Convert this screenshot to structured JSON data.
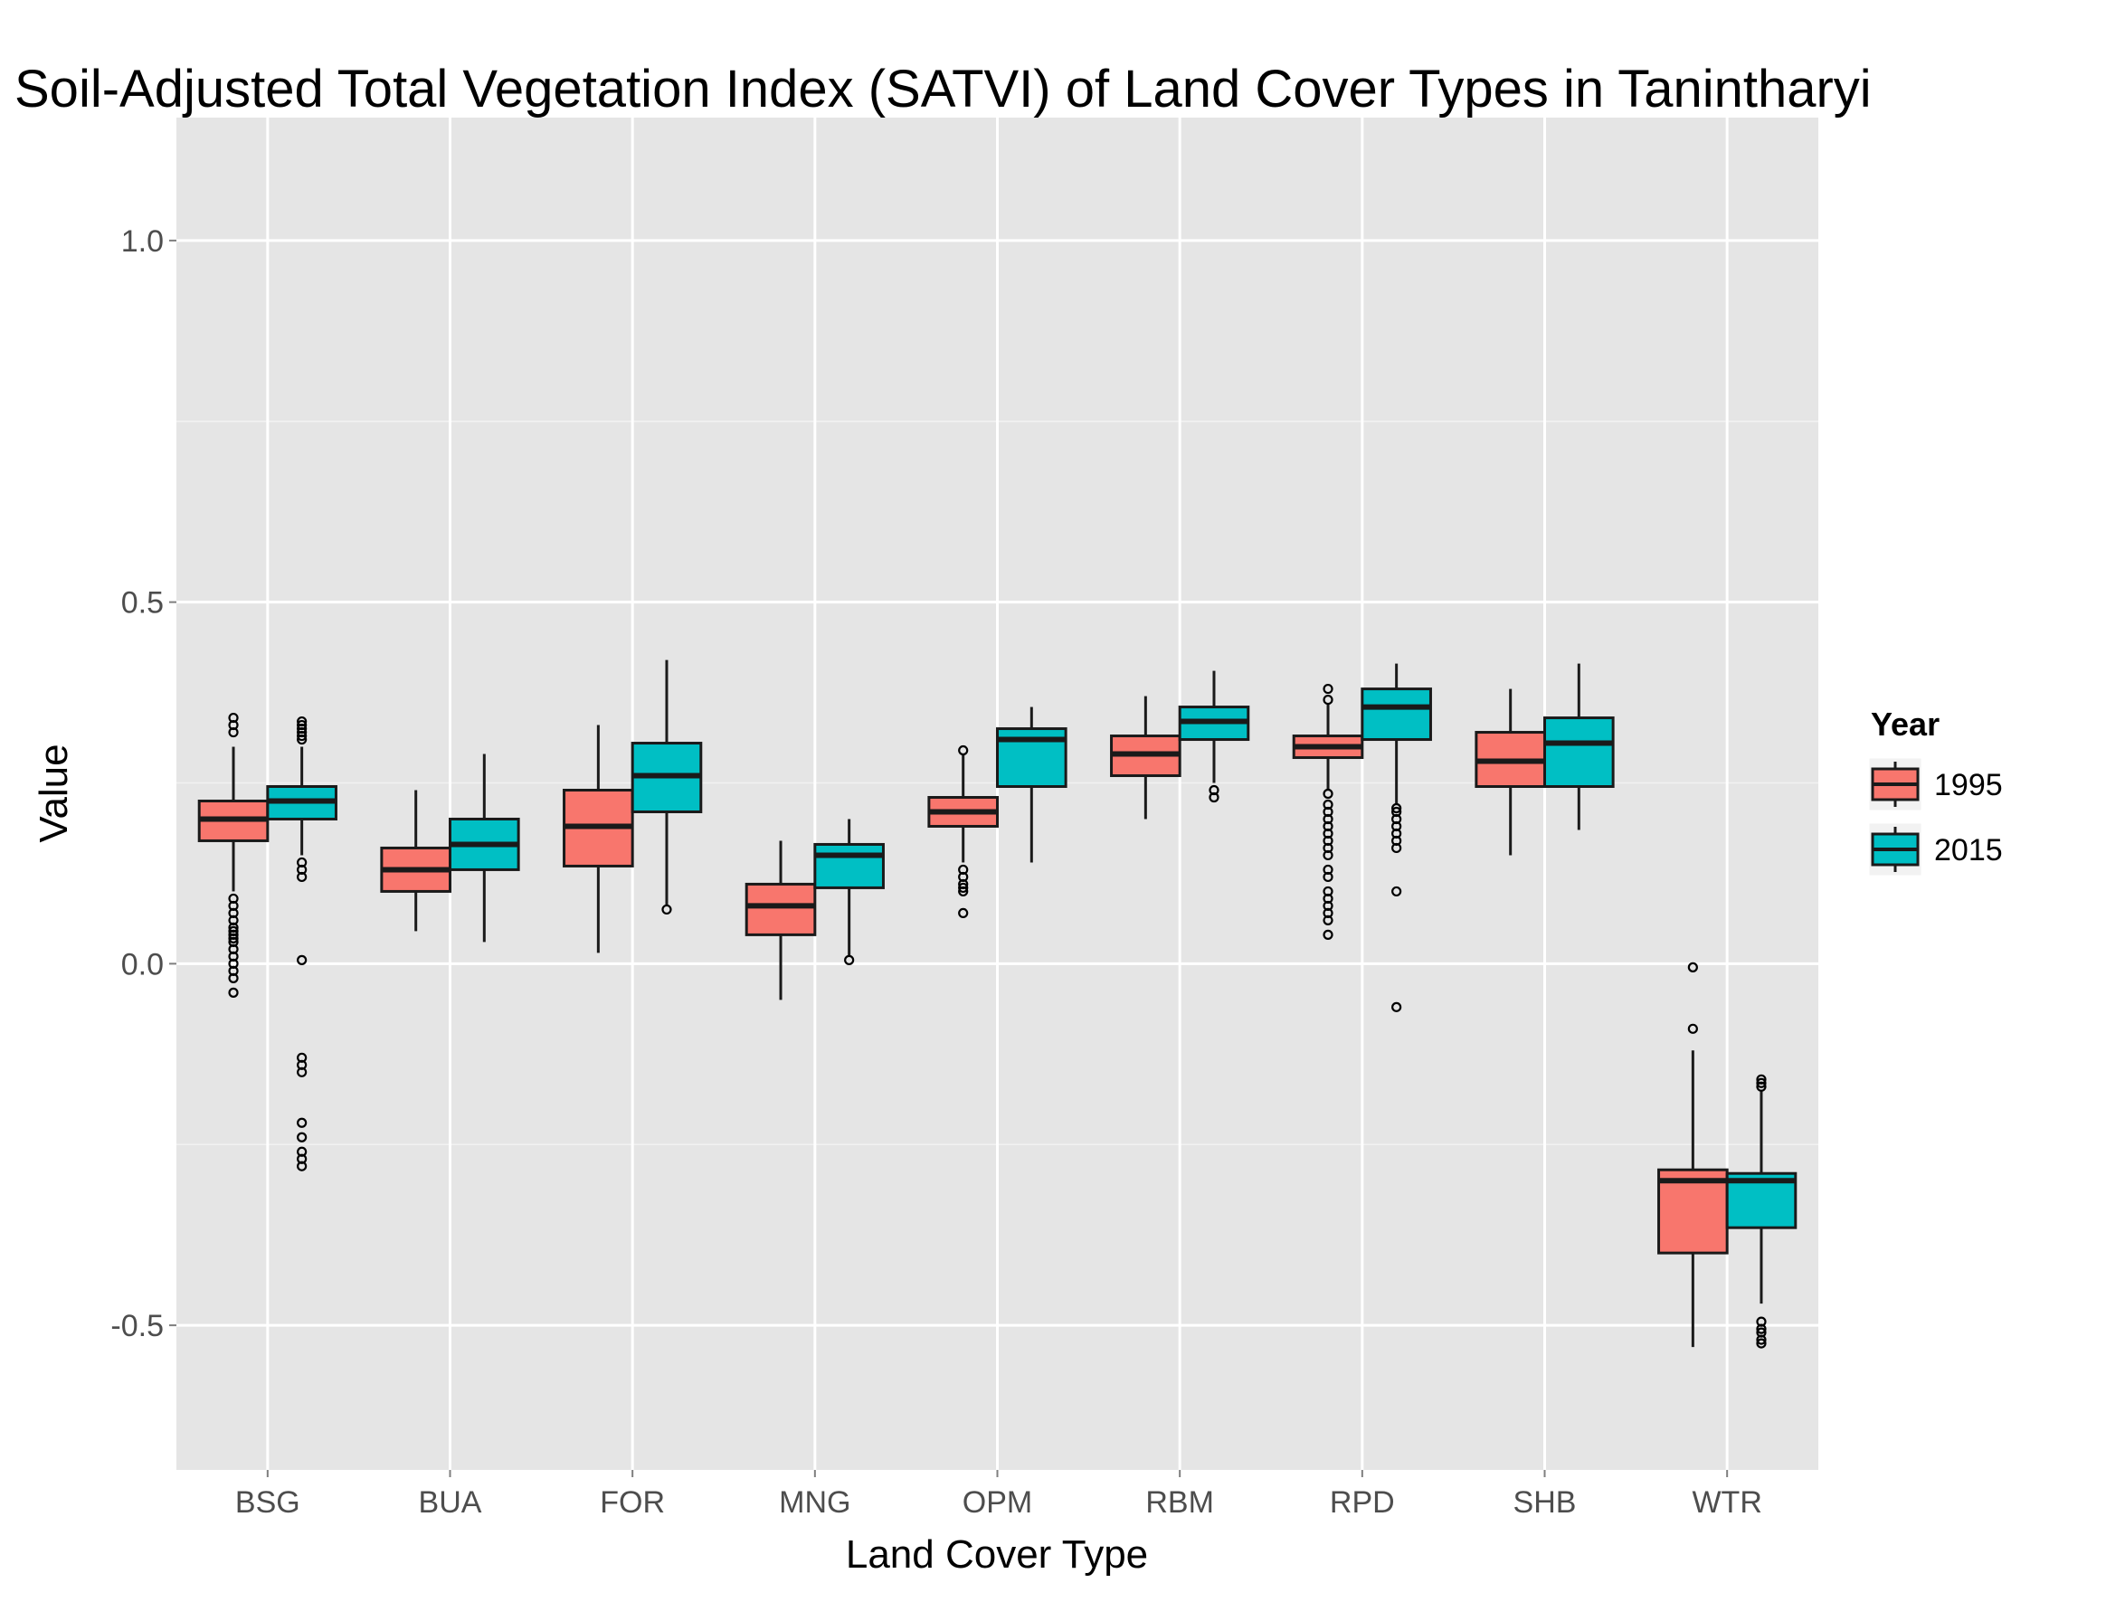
{
  "chart_data": {
    "type": "boxplot",
    "title": "Soil-Adjusted Total Vegetation Index (SATVI) of Land Cover Types in Tanintharyi",
    "xlabel": "Land Cover Type",
    "ylabel": "Value",
    "ylim": [
      -0.7,
      1.17
    ],
    "y_ticks": [
      -0.5,
      0.0,
      0.5,
      1.0
    ],
    "y_tick_labels": [
      "-0.5",
      "0.0",
      "0.5",
      "1.0"
    ],
    "grid": true,
    "legend": {
      "title": "Year",
      "position": "right"
    },
    "categories": [
      "BSG",
      "BUA",
      "FOR",
      "MNG",
      "OPM",
      "RBM",
      "RPD",
      "SHB",
      "WTR"
    ],
    "series": [
      {
        "name": "1995",
        "color": "#F8766D",
        "boxes": [
          {
            "category": "BSG",
            "lower_whisker": 0.1,
            "q1": 0.17,
            "median": 0.2,
            "q3": 0.225,
            "upper_whisker": 0.3,
            "outliers": [
              0.34,
              0.33,
              0.32,
              0.09,
              0.08,
              0.07,
              0.06,
              0.05,
              0.045,
              0.04,
              0.035,
              0.03,
              0.02,
              0.01,
              0.0,
              -0.01,
              -0.02,
              -0.04
            ]
          },
          {
            "category": "BUA",
            "lower_whisker": 0.045,
            "q1": 0.1,
            "median": 0.13,
            "q3": 0.16,
            "upper_whisker": 0.24,
            "outliers": []
          },
          {
            "category": "FOR",
            "lower_whisker": 0.015,
            "q1": 0.135,
            "median": 0.19,
            "q3": 0.24,
            "upper_whisker": 0.33,
            "outliers": []
          },
          {
            "category": "MNG",
            "lower_whisker": -0.05,
            "q1": 0.04,
            "median": 0.08,
            "q3": 0.11,
            "upper_whisker": 0.17,
            "outliers": []
          },
          {
            "category": "OPM",
            "lower_whisker": 0.14,
            "q1": 0.19,
            "median": 0.21,
            "q3": 0.23,
            "upper_whisker": 0.29,
            "outliers": [
              0.295,
              0.13,
              0.12,
              0.11,
              0.105,
              0.1,
              0.07
            ]
          },
          {
            "category": "RBM",
            "lower_whisker": 0.2,
            "q1": 0.26,
            "median": 0.29,
            "q3": 0.315,
            "upper_whisker": 0.37,
            "outliers": []
          },
          {
            "category": "RPD",
            "lower_whisker": 0.24,
            "q1": 0.285,
            "median": 0.3,
            "q3": 0.315,
            "upper_whisker": 0.36,
            "outliers": [
              0.38,
              0.365,
              0.235,
              0.22,
              0.21,
              0.2,
              0.19,
              0.18,
              0.17,
              0.16,
              0.15,
              0.13,
              0.12,
              0.1,
              0.09,
              0.08,
              0.07,
              0.06,
              0.04
            ]
          },
          {
            "category": "SHB",
            "lower_whisker": 0.15,
            "q1": 0.245,
            "median": 0.28,
            "q3": 0.32,
            "upper_whisker": 0.38,
            "outliers": []
          },
          {
            "category": "WTR",
            "lower_whisker": -0.53,
            "q1": -0.4,
            "median": -0.3,
            "q3": -0.285,
            "upper_whisker": -0.12,
            "outliers": [
              -0.005,
              -0.09
            ]
          }
        ]
      },
      {
        "name": "2015",
        "color": "#00BFC4",
        "boxes": [
          {
            "category": "BSG",
            "lower_whisker": 0.15,
            "q1": 0.2,
            "median": 0.225,
            "q3": 0.245,
            "upper_whisker": 0.3,
            "outliers": [
              0.335,
              0.33,
              0.325,
              0.32,
              0.315,
              0.31,
              0.14,
              0.13,
              0.12,
              0.005,
              -0.13,
              -0.14,
              -0.15,
              -0.22,
              -0.24,
              -0.26,
              -0.27,
              -0.28
            ]
          },
          {
            "category": "BUA",
            "lower_whisker": 0.03,
            "q1": 0.13,
            "median": 0.165,
            "q3": 0.2,
            "upper_whisker": 0.29,
            "outliers": []
          },
          {
            "category": "FOR",
            "lower_whisker": 0.08,
            "q1": 0.21,
            "median": 0.26,
            "q3": 0.305,
            "upper_whisker": 0.42,
            "outliers": [
              0.075
            ]
          },
          {
            "category": "MNG",
            "lower_whisker": 0.01,
            "q1": 0.105,
            "median": 0.15,
            "q3": 0.165,
            "upper_whisker": 0.2,
            "outliers": [
              0.005
            ]
          },
          {
            "category": "OPM",
            "lower_whisker": 0.14,
            "q1": 0.245,
            "median": 0.31,
            "q3": 0.325,
            "upper_whisker": 0.355,
            "outliers": []
          },
          {
            "category": "RBM",
            "lower_whisker": 0.25,
            "q1": 0.31,
            "median": 0.335,
            "q3": 0.355,
            "upper_whisker": 0.405,
            "outliers": [
              0.24,
              0.23
            ]
          },
          {
            "category": "RPD",
            "lower_whisker": 0.22,
            "q1": 0.31,
            "median": 0.355,
            "q3": 0.38,
            "upper_whisker": 0.415,
            "outliers": [
              0.215,
              0.21,
              0.2,
              0.19,
              0.18,
              0.17,
              0.16,
              0.1,
              -0.06
            ]
          },
          {
            "category": "SHB",
            "lower_whisker": 0.185,
            "q1": 0.245,
            "median": 0.305,
            "q3": 0.34,
            "upper_whisker": 0.415,
            "outliers": []
          },
          {
            "category": "WTR",
            "lower_whisker": -0.47,
            "q1": -0.365,
            "median": -0.3,
            "q3": -0.29,
            "upper_whisker": -0.175,
            "outliers": [
              -0.16,
              -0.165,
              -0.17,
              -0.495,
              -0.505,
              -0.51,
              -0.52,
              -0.525
            ]
          }
        ]
      }
    ]
  }
}
